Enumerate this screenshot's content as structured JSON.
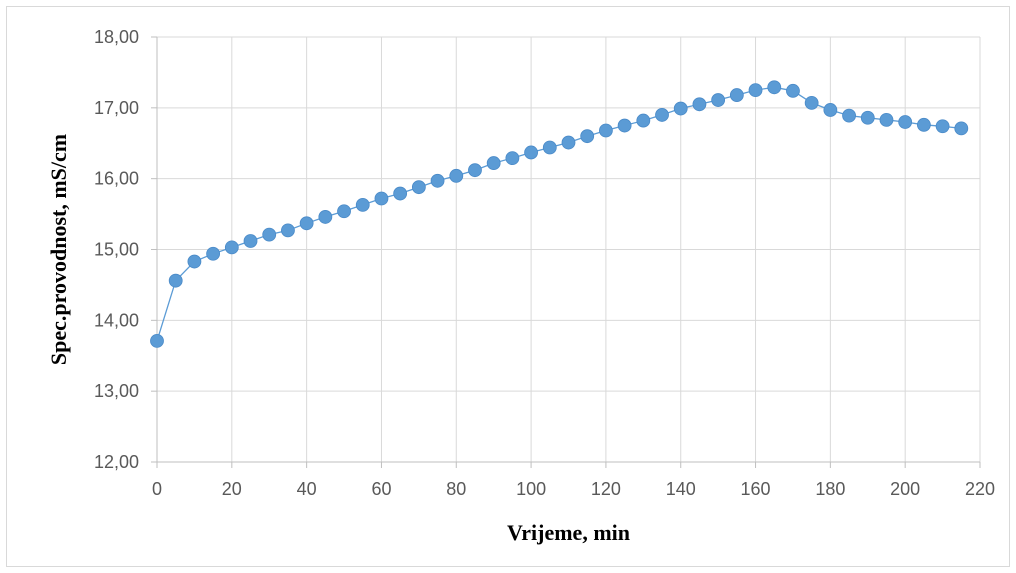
{
  "chart_data": {
    "type": "scatter",
    "title": "",
    "xlabel": "Vrijeme, min",
    "ylabel": "Spec.provodnost, mS/cm",
    "xlim": [
      0,
      220
    ],
    "ylim": [
      12,
      18
    ],
    "x_ticks": [
      "0",
      "20",
      "40",
      "60",
      "80",
      "100",
      "120",
      "140",
      "160",
      "180",
      "200",
      "220"
    ],
    "y_ticks": [
      "12,00",
      "13,00",
      "14,00",
      "15,00",
      "16,00",
      "17,00",
      "18,00"
    ],
    "grid": true,
    "legend": "none",
    "line": true,
    "marker": "circle",
    "colors": {
      "series": "#5b9bd5",
      "grid": "#d9d9d9",
      "axis": "#bfbfbf",
      "tick_text": "#595959",
      "title_text": "#000000"
    },
    "series": [
      {
        "x": [
          0,
          5,
          10,
          15,
          20,
          25,
          30,
          35,
          40,
          45,
          50,
          55,
          60,
          65,
          70,
          75,
          80,
          85,
          90,
          95,
          100,
          105,
          110,
          115,
          120,
          125,
          130,
          135,
          140,
          145,
          150,
          155,
          160,
          165,
          170,
          175,
          180,
          185,
          190,
          195,
          200,
          205,
          210,
          215
        ],
        "y": [
          13.71,
          14.56,
          14.83,
          14.94,
          15.03,
          15.12,
          15.21,
          15.27,
          15.37,
          15.46,
          15.54,
          15.63,
          15.72,
          15.79,
          15.88,
          15.97,
          16.04,
          16.12,
          16.22,
          16.29,
          16.37,
          16.44,
          16.51,
          16.6,
          16.68,
          16.75,
          16.82,
          16.9,
          16.99,
          17.05,
          17.11,
          17.18,
          17.25,
          17.29,
          17.24,
          17.07,
          16.97,
          16.89,
          16.86,
          16.83,
          16.8,
          16.76,
          16.74,
          16.71
        ]
      }
    ]
  }
}
